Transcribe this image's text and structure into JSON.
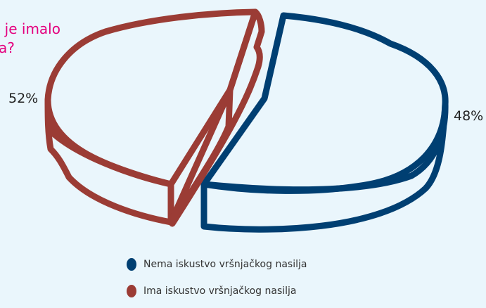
{
  "title": {
    "line1": "e je imalo",
    "line2": "a?"
  },
  "chart_data": {
    "type": "pie",
    "title": "e je imalo a?",
    "labels": [
      "Nema iskustvo vršnjačkog nasilja",
      "Ima iskustvo vršnjačkog nasilja"
    ],
    "values": [
      48,
      52
    ],
    "unit": "%",
    "data_labels": [
      "48%",
      "52%"
    ],
    "colors": [
      "#003f72",
      "#9b3c35"
    ],
    "legend": "bottom"
  }
}
